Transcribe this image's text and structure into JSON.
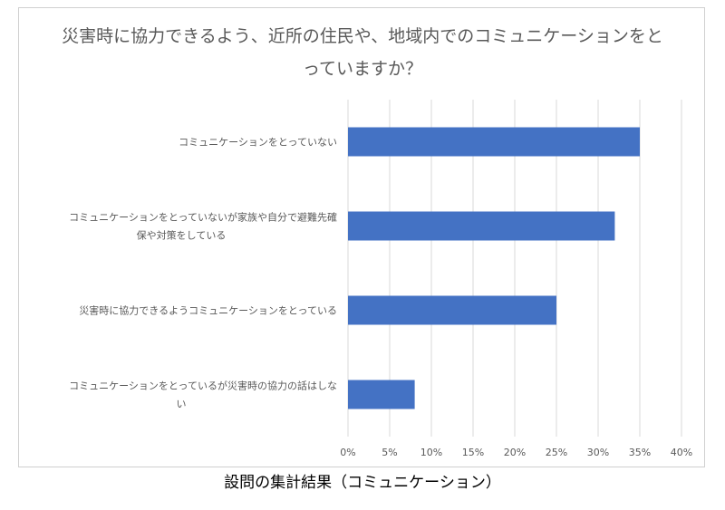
{
  "chart_data": {
    "type": "bar",
    "orientation": "horizontal",
    "title": "災害時に協力できるよう、近所の住民や、地域内でのコミュニケーションをとっていますか？",
    "categories": [
      "コミュニケーションをとっていない",
      "コミュニケーションをとっていないが家族や自分で避難先確保や対策をしている",
      "災害時に協力できるようコミュニケーションをとっている",
      "コミュニケーションをとっているが災害時の協力の話はしない"
    ],
    "category_lines": [
      [
        "コミュニケーションをとっていない"
      ],
      [
        "コミュニケーションをとっていないが家族や自分で避難先確",
        "保や対策をしている"
      ],
      [
        "災害時に協力できるようコミュニケーションをとっている"
      ],
      [
        "コミュニケーションをとっているが災害時の協力の話はしな",
        "い"
      ]
    ],
    "values": [
      35,
      32,
      25,
      8
    ],
    "xlim": [
      0,
      40
    ],
    "xticks": [
      "0%",
      "5%",
      "10%",
      "15%",
      "20%",
      "25%",
      "30%",
      "35%",
      "40%"
    ],
    "grid": true,
    "bar_color": "#4472C4",
    "xlabel": "",
    "ylabel": ""
  },
  "caption": "設問の集計結果（コミュニケーション）"
}
